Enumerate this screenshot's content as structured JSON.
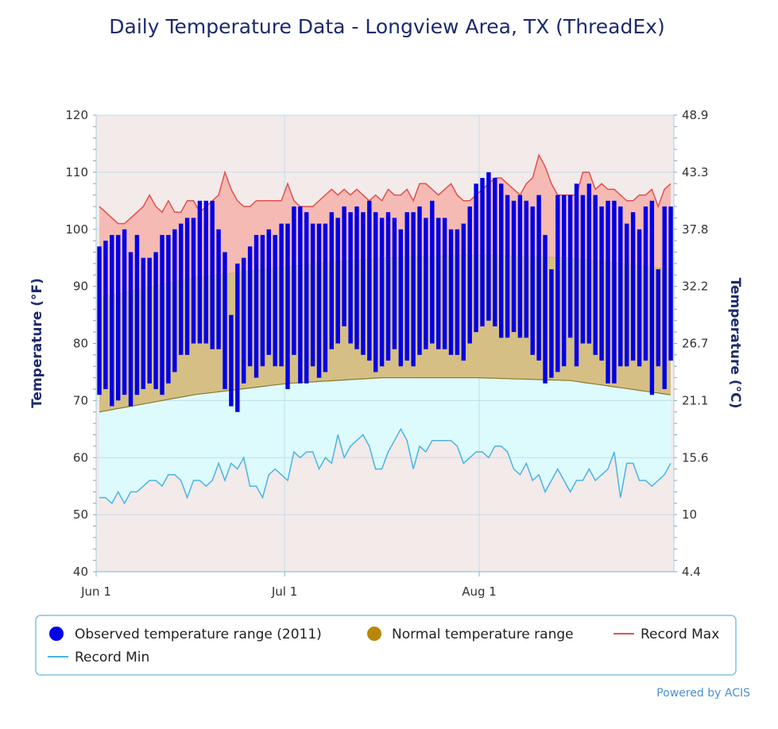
{
  "chart_data": {
    "type": "bar",
    "title": "Daily Temperature Data - Longview Area, TX (ThreadEx)",
    "ylabel_left": "Temperature (°F)",
    "ylabel_right": "Temperature (°C)",
    "ylim": [
      40,
      120
    ],
    "y_ticks": [
      40,
      50,
      60,
      70,
      80,
      90,
      100,
      110,
      120
    ],
    "y_ticks_right": [
      "4.4",
      "10",
      "15.6",
      "21.1",
      "26.7",
      "32.2",
      "37.8",
      "43.3",
      "48.9"
    ],
    "x_ticks": [
      {
        "day": 1,
        "label": "Jun 1"
      },
      {
        "day": 31,
        "label": "Jul 1"
      },
      {
        "day": 62,
        "label": "Aug 1"
      }
    ],
    "x_range_days": [
      1,
      92
    ],
    "observed": {
      "name": "Observed temperature range (2011)",
      "high": [
        97,
        98,
        99,
        99,
        100,
        96,
        99,
        95,
        95,
        96,
        99,
        99,
        100,
        101,
        102,
        102,
        105,
        105,
        105,
        100,
        96,
        85,
        94,
        95,
        97,
        99,
        99,
        100,
        99,
        101,
        101,
        104,
        104,
        103,
        101,
        101,
        101,
        103,
        102,
        104,
        103,
        104,
        103,
        105,
        103,
        102,
        103,
        102,
        100,
        103,
        103,
        104,
        102,
        105,
        102,
        102,
        100,
        100,
        101,
        104,
        108,
        109,
        110,
        109,
        108,
        106,
        105,
        106,
        105,
        104,
        106,
        99,
        93,
        106,
        106,
        106,
        108,
        106,
        108,
        106,
        104,
        105,
        105,
        104,
        101,
        103,
        100,
        104,
        105,
        93,
        104,
        104
      ],
      "low": [
        71,
        72,
        69,
        70,
        71,
        69,
        71,
        72,
        73,
        72,
        71,
        73,
        75,
        78,
        78,
        80,
        80,
        80,
        79,
        79,
        72,
        69,
        68,
        73,
        76,
        74,
        76,
        78,
        76,
        76,
        72,
        78,
        73,
        73,
        76,
        74,
        75,
        79,
        80,
        83,
        80,
        79,
        78,
        77,
        75,
        76,
        77,
        79,
        76,
        77,
        76,
        78,
        79,
        80,
        79,
        79,
        78,
        78,
        77,
        80,
        82,
        83,
        84,
        83,
        81,
        81,
        82,
        81,
        81,
        78,
        77,
        73,
        74,
        75,
        76,
        81,
        76,
        80,
        80,
        78,
        77,
        73,
        73,
        76,
        76,
        77,
        76,
        77,
        71,
        76,
        72,
        77
      ]
    },
    "normal": {
      "name": "Normal temperature range",
      "min": [
        68,
        71,
        73,
        74,
        74,
        73.5,
        71
      ],
      "max": [
        88,
        91.5,
        93.5,
        95,
        95.5,
        95,
        93
      ],
      "at_days": [
        1,
        16,
        31,
        46,
        61,
        76,
        92
      ]
    },
    "record_max": {
      "name": "Record Max",
      "values": [
        104,
        103,
        102,
        101,
        101,
        102,
        103,
        104,
        106,
        104,
        103,
        105,
        103,
        103,
        105,
        105,
        103,
        104,
        105,
        106,
        110,
        107,
        105,
        104,
        104,
        105,
        105,
        105,
        105,
        105,
        108,
        105,
        104,
        104,
        104,
        105,
        106,
        107,
        106,
        107,
        106,
        107,
        106,
        105,
        106,
        105,
        107,
        106,
        106,
        107,
        105,
        108,
        108,
        107,
        106,
        107,
        108,
        106,
        105,
        105,
        106,
        107,
        108,
        109,
        109,
        108,
        107,
        106,
        108,
        109,
        113,
        111,
        108,
        106,
        106,
        106,
        106,
        110,
        110,
        107,
        108,
        107,
        107,
        106,
        105,
        105,
        106,
        106,
        107,
        104,
        107,
        108
      ]
    },
    "record_min": {
      "name": "Record Min",
      "values": [
        53,
        53,
        52,
        54,
        52,
        54,
        54,
        55,
        56,
        56,
        55,
        57,
        57,
        56,
        53,
        56,
        56,
        55,
        56,
        59,
        56,
        59,
        58,
        60,
        55,
        55,
        53,
        57,
        58,
        57,
        56,
        61,
        60,
        61,
        61,
        58,
        60,
        59,
        64,
        60,
        62,
        63,
        64,
        62,
        58,
        58,
        61,
        63,
        65,
        63,
        58,
        62,
        61,
        63,
        63,
        63,
        63,
        62,
        59,
        60,
        61,
        61,
        60,
        62,
        62,
        61,
        58,
        57,
        59,
        56,
        57,
        54,
        56,
        58,
        56,
        54,
        56,
        56,
        58,
        56,
        57,
        58,
        61,
        53,
        59,
        59,
        56,
        56,
        55,
        56,
        57,
        59
      ]
    },
    "legend": [
      {
        "label": "Observed temperature range (2011)",
        "color": "#0000e6",
        "symbol": "circle"
      },
      {
        "label": "Normal temperature range",
        "color": "#b8860b",
        "symbol": "circle"
      },
      {
        "label": "Record Max",
        "color": "#e05050",
        "symbol": "line"
      },
      {
        "label": "Record Min",
        "color": "#4ab4e0",
        "symbol": "line"
      }
    ],
    "colors": {
      "observed": "#0000e6",
      "normal_fill": "#d6bf85",
      "normal_line": "#8b7a2a",
      "record_max_line": "#e05050",
      "record_max_fill": "#f5b5ad",
      "record_min_line": "#4ab4e0",
      "record_min_fill": "#ddfafd",
      "below_min_fill": "#f3eaea",
      "grid": "#bfdfe8",
      "axis_title": "#1c2a6e"
    },
    "credits": "Powered by ACIS"
  }
}
